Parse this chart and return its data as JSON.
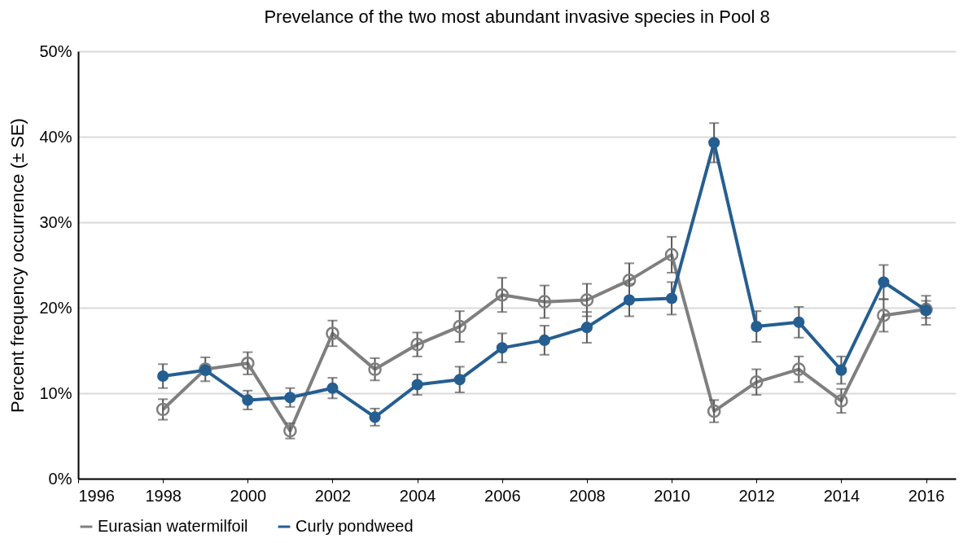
{
  "chart_data": {
    "type": "line",
    "title": "Prevelance of the two most abundant invasive species in Pool 8",
    "ylabel": "Percent frequency occurrence (± SE)",
    "x": [
      1998,
      1999,
      2000,
      2001,
      2002,
      2003,
      2004,
      2005,
      2006,
      2007,
      2008,
      2009,
      2010,
      2011,
      2012,
      2013,
      2014,
      2015,
      2016
    ],
    "series": [
      {
        "name": "Eurasian watermilfoil",
        "color": "#7f7f7f",
        "values": [
          8.1,
          12.8,
          13.5,
          5.6,
          17.0,
          12.8,
          15.7,
          17.8,
          21.5,
          20.7,
          20.9,
          23.2,
          26.2,
          7.9,
          11.3,
          12.8,
          9.1,
          19.1,
          19.8
        ],
        "errors": [
          1.2,
          1.4,
          1.3,
          0.9,
          1.5,
          1.3,
          1.4,
          1.8,
          2.0,
          1.9,
          1.9,
          2.0,
          2.1,
          1.3,
          1.5,
          1.5,
          1.4,
          1.9,
          1.0
        ]
      },
      {
        "name": "Curly pondweed",
        "color": "#255e91",
        "values": [
          12.0,
          12.7,
          9.2,
          9.5,
          10.6,
          7.2,
          11.0,
          11.6,
          15.3,
          16.2,
          17.7,
          20.9,
          21.1,
          39.3,
          17.8,
          18.3,
          12.7,
          23.0,
          19.7
        ],
        "errors": [
          1.4,
          null,
          1.1,
          1.1,
          1.2,
          1.0,
          1.2,
          1.5,
          1.7,
          1.7,
          1.8,
          1.9,
          1.9,
          2.3,
          1.8,
          1.8,
          1.6,
          2.0,
          1.7
        ]
      }
    ],
    "xlim": [
      1996,
      2016.7
    ],
    "xticks": [
      1996,
      1998,
      2000,
      2002,
      2004,
      2006,
      2008,
      2010,
      2012,
      2014,
      2016
    ],
    "ylim": [
      0,
      50
    ],
    "yticks": [
      {
        "value": 0,
        "label": "0%"
      },
      {
        "value": 10,
        "label": "10%"
      },
      {
        "value": 20,
        "label": "20%"
      },
      {
        "value": 30,
        "label": "30%"
      },
      {
        "value": 40,
        "label": "40%"
      },
      {
        "value": 50,
        "label": "50%"
      }
    ],
    "grid": "y",
    "legend": "bottom",
    "marker": "circle",
    "line_style": "solid"
  }
}
